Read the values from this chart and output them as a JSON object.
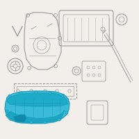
{
  "bg_color": "#f2efea",
  "highlight_color": "#2ab8d8",
  "highlight_dark": "#1a98b8",
  "line_color": "#9a9a9a",
  "dark_line": "#666666",
  "figsize": [
    2.0,
    2.0
  ],
  "dpi": 100
}
